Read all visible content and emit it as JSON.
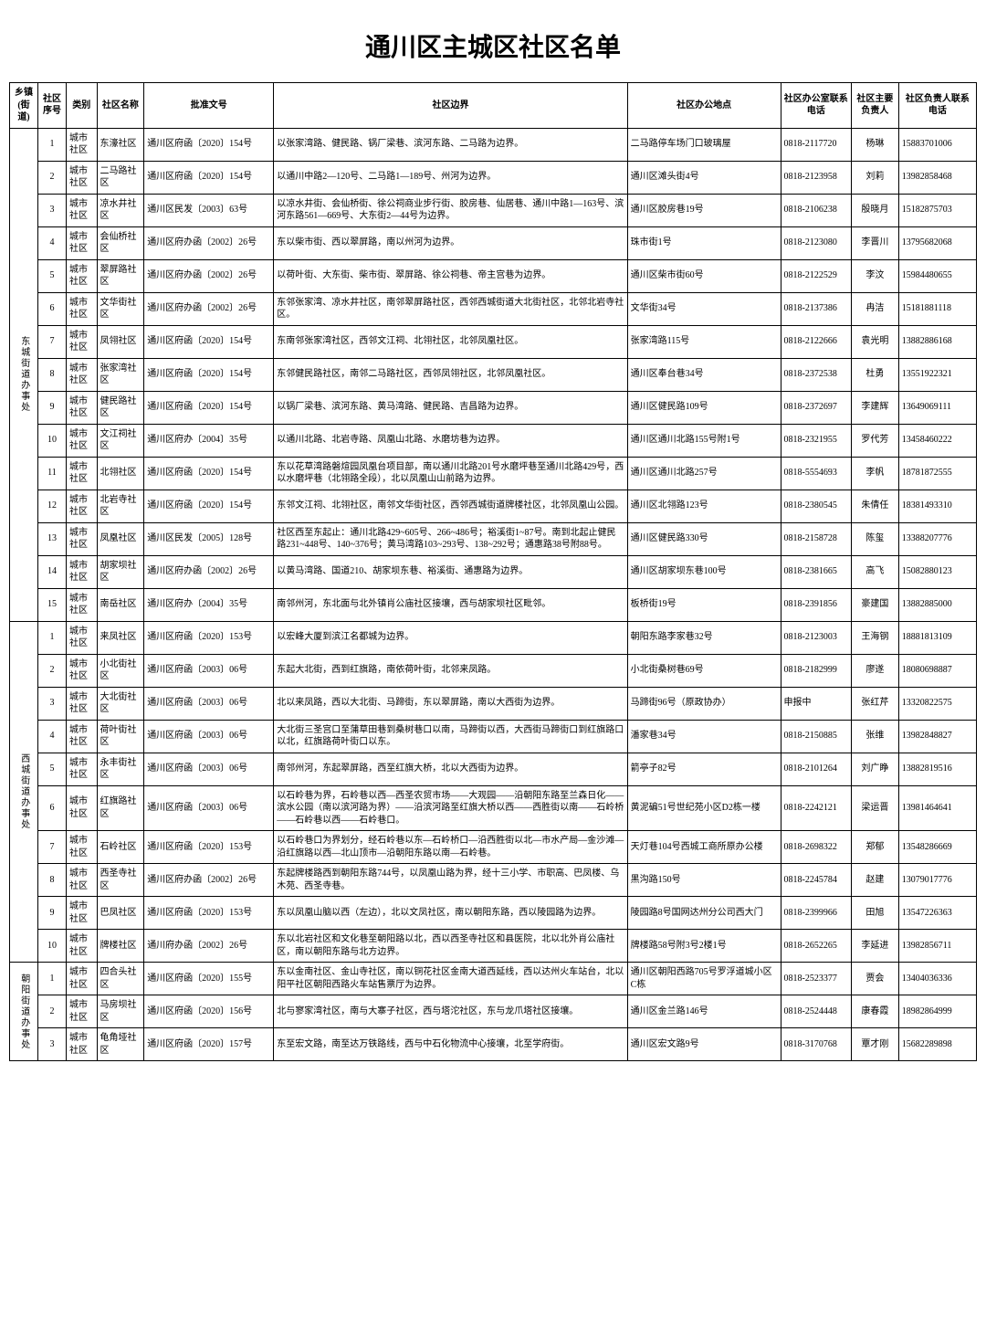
{
  "title": "通川区主城区社区名单",
  "columns": [
    "乡镇(街道)",
    "社区序号",
    "类别",
    "社区名称",
    "批准文号",
    "社区边界",
    "社区办公地点",
    "社区办公室联系电话",
    "社区主要负责人",
    "社区负责人联系电话"
  ],
  "groups": [
    {
      "town": "东城街道办事处",
      "rows": [
        {
          "seq": "1",
          "type": "城市社区",
          "name": "东濠社区",
          "doc": "通川区府函〔2020〕154号",
          "bound": "以张家湾路、健民路、锅厂梁巷、滨河东路、二马路为边界。",
          "addr": "二马路停车场门口玻璃屋",
          "phone": "0818-2117720",
          "leader": "杨琳",
          "lphone": "15883701006"
        },
        {
          "seq": "2",
          "type": "城市社区",
          "name": "二马路社区",
          "doc": "通川区府函〔2020〕154号",
          "bound": "以通川中路2—120号、二马路1—189号、州河为边界。",
          "addr": "通川区滩头街4号",
          "phone": "0818-2123958",
          "leader": "刘莉",
          "lphone": "13982858468"
        },
        {
          "seq": "3",
          "type": "城市社区",
          "name": "凉水井社区",
          "doc": "通川区民发〔2003〕63号",
          "bound": "以凉水井街、会仙桥街、徐公祠商业步行街、胶房巷、仙居巷、通川中路1—163号、滨河东路561—669号、大东街2—44号为边界。",
          "addr": "通川区胶房巷19号",
          "phone": "0818-2106238",
          "leader": "殷晓月",
          "lphone": "15182875703"
        },
        {
          "seq": "4",
          "type": "城市社区",
          "name": "会仙桥社区",
          "doc": "通川区府办函〔2002〕26号",
          "bound": "东以柴市街、西以翠屏路，南以州河为边界。",
          "addr": "珠市街1号",
          "phone": "0818-2123080",
          "leader": "李晋川",
          "lphone": "13795682068"
        },
        {
          "seq": "5",
          "type": "城市社区",
          "name": "翠屏路社区",
          "doc": "通川区府办函〔2002〕26号",
          "bound": "以荷叶街、大东街、柴市街、翠屏路、徐公祠巷、帝主宫巷为边界。",
          "addr": "通川区柴市街60号",
          "phone": "0818-2122529",
          "leader": "李汶",
          "lphone": "15984480655"
        },
        {
          "seq": "6",
          "type": "城市社区",
          "name": "文华街社区",
          "doc": "通川区府办函〔2002〕26号",
          "bound": "东邻张家湾、凉水井社区，南邻翠屏路社区，西邻西城街道大北街社区，北邻北岩寺社区。",
          "addr": "文华街34号",
          "phone": "0818-2137386",
          "leader": "冉洁",
          "lphone": "15181881118"
        },
        {
          "seq": "7",
          "type": "城市社区",
          "name": "凤翎社区",
          "doc": "通川区府函〔2020〕154号",
          "bound": "东南邻张家湾社区，西邻文江祠、北翎社区，北邻凤凰社区。",
          "addr": "张家湾路115号",
          "phone": "0818-2122666",
          "leader": "袁光明",
          "lphone": "13882886168"
        },
        {
          "seq": "8",
          "type": "城市社区",
          "name": "张家湾社区",
          "doc": "通川区府函〔2020〕154号",
          "bound": "东邻健民路社区，南邻二马路社区，西邻凤翎社区，北邻凤凰社区。",
          "addr": "通川区奉台巷34号",
          "phone": "0818-2372538",
          "leader": "杜勇",
          "lphone": "13551922321"
        },
        {
          "seq": "9",
          "type": "城市社区",
          "name": "健民路社区",
          "doc": "通川区府函〔2020〕154号",
          "bound": "以锅厂梁巷、滨河东路、黄马湾路、健民路、吉昌路为边界。",
          "addr": "通川区健民路109号",
          "phone": "0818-2372697",
          "leader": "李建辉",
          "lphone": "13649069111"
        },
        {
          "seq": "10",
          "type": "城市社区",
          "name": "文江祠社区",
          "doc": "通川区府办〔2004〕35号",
          "bound": "以通川北路、北岩寺路、凤凰山北路、水磨坊巷为边界。",
          "addr": "通川区通川北路155号附1号",
          "phone": "0818-2321955",
          "leader": "罗代芳",
          "lphone": "13458460222"
        },
        {
          "seq": "11",
          "type": "城市社区",
          "name": "北翎社区",
          "doc": "通川区府函〔2020〕154号",
          "bound": "东以花草湾路磐煊园凤凰台项目部，南以通川北路201号水磨坪巷至通川北路429号，西以水磨坪巷（北翎路全段），北以凤凰山山前路为边界。",
          "addr": "通川区通川北路257号",
          "phone": "0818-5554693",
          "leader": "李帆",
          "lphone": "18781872555"
        },
        {
          "seq": "12",
          "type": "城市社区",
          "name": "北岩寺社区",
          "doc": "通川区府函〔2020〕154号",
          "bound": "东邻文江祠、北翎社区，南邻文华街社区，西邻西城街道牌楼社区，北邻凤凰山公园。",
          "addr": "通川区北翎路123号",
          "phone": "0818-2380545",
          "leader": "朱倩任",
          "lphone": "18381493310"
        },
        {
          "seq": "13",
          "type": "城市社区",
          "name": "凤凰社区",
          "doc": "通川区民发〔2005〕128号",
          "bound": "社区西至东起止：通川北路429~605号、266~486号；裕溪街1~87号。南到北起止健民路231~448号、140~376号；黄马湾路103~293号、138~292号；通惠路38号附88号。",
          "addr": "通川区健民路330号",
          "phone": "0818-2158728",
          "leader": "陈玺",
          "lphone": "13388207776"
        },
        {
          "seq": "14",
          "type": "城市社区",
          "name": "胡家坝社区",
          "doc": "通川区府办函〔2002〕26号",
          "bound": "以黄马湾路、国道210、胡家坝东巷、裕溪街、通惠路为边界。",
          "addr": "通川区胡家坝东巷100号",
          "phone": "0818-2381665",
          "leader": "高飞",
          "lphone": "15082880123"
        },
        {
          "seq": "15",
          "type": "城市社区",
          "name": "南岳社区",
          "doc": "通川区府办〔2004〕35号",
          "bound": "南邻州河，东北面与北外镇肖公庙社区接壤，西与胡家坝社区毗邻。",
          "addr": "板桥街19号",
          "phone": "0818-2391856",
          "leader": "豪建国",
          "lphone": "13882885000"
        }
      ]
    },
    {
      "town": "西城街道办事处",
      "rows": [
        {
          "seq": "1",
          "type": "城市社区",
          "name": "来凤社区",
          "doc": "通川区府函〔2020〕153号",
          "bound": "以宏峰大厦到滨江名都城为边界。",
          "addr": "朝阳东路李家巷32号",
          "phone": "0818-2123003",
          "leader": "王海钢",
          "lphone": "18881813109"
        },
        {
          "seq": "2",
          "type": "城市社区",
          "name": "小北街社区",
          "doc": "通川区府函〔2003〕06号",
          "bound": "东起大北街，西到红旗路，南依荷叶街，北邻来凤路。",
          "addr": "小北街桑树巷69号",
          "phone": "0818-2182999",
          "leader": "廖遂",
          "lphone": "18080698887"
        },
        {
          "seq": "3",
          "type": "城市社区",
          "name": "大北街社区",
          "doc": "通川区府函〔2003〕06号",
          "bound": "北以来凤路，西以大北街、马蹄街，东以翠屏路，南以大西街为边界。",
          "addr": "马蹄街96号（原政协办）",
          "phone": "申报中",
          "leader": "张红芹",
          "lphone": "13320822575"
        },
        {
          "seq": "4",
          "type": "城市社区",
          "name": "荷叶街社区",
          "doc": "通川区府函〔2003〕06号",
          "bound": "大北街三圣宫口至蒲草田巷到桑树巷口以南，马蹄街以西，大西街马蹄街口到红旗路口以北，红旗路荷叶街口以东。",
          "addr": "潘家巷34号",
          "phone": "0818-2150885",
          "leader": "张维",
          "lphone": "13982848827"
        },
        {
          "seq": "5",
          "type": "城市社区",
          "name": "永丰街社区",
          "doc": "通川区府函〔2003〕06号",
          "bound": "南邻州河，东起翠屏路，西至红旗大桥，北以大西街为边界。",
          "addr": "箭亭子82号",
          "phone": "0818-2101264",
          "leader": "刘广睁",
          "lphone": "13882819516"
        },
        {
          "seq": "6",
          "type": "城市社区",
          "name": "红旗路社区",
          "doc": "通川区府函〔2003〕06号",
          "bound": "以石岭巷为界，石岭巷以西—西圣农贸市场——大观园——沿朝阳东路至兰森日化——滨水公园（南以滨河路为界）——沿滨河路至红旗大桥以西——西胜街以南——石岭桥——石岭巷以西——石岭巷口。",
          "addr": "黄泥碥51号世纪苑小区D2栋一楼",
          "phone": "0818-2242121",
          "leader": "梁运晋",
          "lphone": "13981464641"
        },
        {
          "seq": "7",
          "type": "城市社区",
          "name": "石岭社区",
          "doc": "通川区府函〔2020〕153号",
          "bound": "以石岭巷口为界划分，经石岭巷以东—石岭桥口—沿西胜街以北—市水产局—金沙滩—沿红旗路以西—北山顶市—沿朝阳东路以南—石岭巷。",
          "addr": "天灯巷104号西城工商所原办公楼",
          "phone": "0818-2698322",
          "leader": "郑郁",
          "lphone": "13548286669"
        },
        {
          "seq": "8",
          "type": "城市社区",
          "name": "西圣寺社区",
          "doc": "通川区府办函〔2002〕26号",
          "bound": "东起牌楼路西到朝阳东路744号，以凤凰山路为界，经十三小学、市职高、巴凤楼、乌木苑、西圣寺巷。",
          "addr": "黑沟路150号",
          "phone": "0818-2245784",
          "leader": "赵建",
          "lphone": "13079017776"
        },
        {
          "seq": "9",
          "type": "城市社区",
          "name": "巴凤社区",
          "doc": "通川区府函〔2020〕153号",
          "bound": "东以凤凰山脑以西（左边），北以文凤社区，南以朝阳东路，西以陵园路为边界。",
          "addr": "陵园路8号国网达州分公司西大门",
          "phone": "0818-2399966",
          "leader": "田旭",
          "lphone": "13547226363"
        },
        {
          "seq": "10",
          "type": "城市社区",
          "name": "牌楼社区",
          "doc": "通川府办函〔2002〕26号",
          "bound": "东以北岩社区和文化巷至朝阳路以北，西以西圣寺社区和县医院，北以北外肖公庙社区，南以朝阳东路与北方边界。",
          "addr": "牌楼路58号附3号2楼1号",
          "phone": "0818-2652265",
          "leader": "李延进",
          "lphone": "13982856711"
        }
      ]
    },
    {
      "town": "朝阳街道办事处",
      "rows": [
        {
          "seq": "1",
          "type": "城市社区",
          "name": "四合头社区",
          "doc": "通川区府函〔2020〕155号",
          "bound": "东以金南社区、金山寺社区，南以铜花社区金南大道西延线，西以达州火车站台，北以阳平社区朝阳西路火车站售票厅为边界。",
          "addr": "通川区朝阳西路705号罗浮道城小区C栋",
          "phone": "0818-2523377",
          "leader": "贾会",
          "lphone": "13404036336"
        },
        {
          "seq": "2",
          "type": "城市社区",
          "name": "马房坝社区",
          "doc": "通川区府函〔2020〕156号",
          "bound": "北与寥家湾社区，南与大寨子社区，西与塔沱社区，东与龙爪塔社区接壤。",
          "addr": "通川区金兰路146号",
          "phone": "0818-2524448",
          "leader": "康春霞",
          "lphone": "18982864999"
        },
        {
          "seq": "3",
          "type": "城市社区",
          "name": "龟角垭社区",
          "doc": "通川区府函〔2020〕157号",
          "bound": "东至宏文路，南至达万铁路线，西与中石化物流中心接壤，北至学府街。",
          "addr": "通川区宏文路9号",
          "phone": "0818-3170768",
          "leader": "覃才刚",
          "lphone": "15682289898"
        }
      ]
    }
  ]
}
